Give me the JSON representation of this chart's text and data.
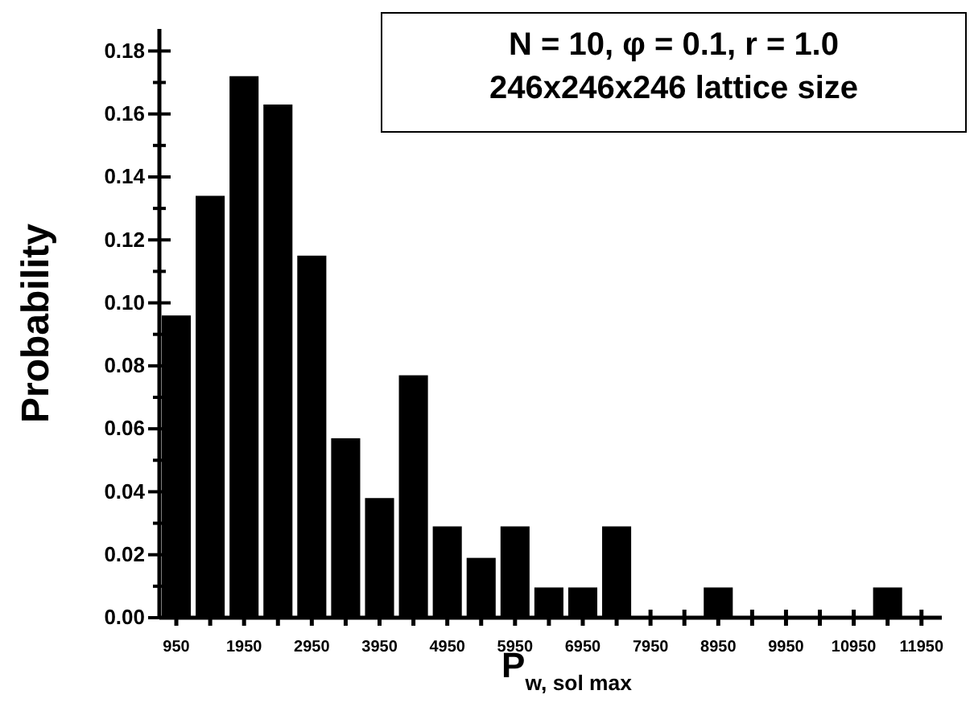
{
  "chart_data": {
    "type": "histogram",
    "xlabel": "P$_{w, sol max}$",
    "ylabel": "Probability",
    "annotations": [
      "N = 10, φ = 0.1, r = 1.0",
      "246x246x246 lattice size"
    ],
    "bins": [
      700,
      1200,
      1700,
      2200,
      2700,
      3200,
      3700,
      4200,
      4700,
      5200,
      5700,
      6200,
      6700,
      7200,
      7700,
      8200,
      8700,
      9200,
      9700,
      10200,
      10700,
      11200,
      11700
    ],
    "values": [
      0.096,
      0.134,
      0.172,
      0.163,
      0.115,
      0.057,
      0.038,
      0.077,
      0.029,
      0.019,
      0.029,
      0.0096,
      0.0096,
      0.029,
      0,
      0,
      0.0096,
      0,
      0,
      0,
      0,
      0.0096
    ],
    "color": "#000000",
    "xlim": [
      700,
      12250
    ],
    "ylim": [
      0,
      0.187
    ],
    "xticks": [
      950,
      {
        "value": 1450,
        "label": null
      },
      1950,
      {
        "value": 2450,
        "label": null
      },
      2950,
      {
        "value": 3450,
        "label": null
      },
      3950,
      {
        "value": 4450,
        "label": null
      },
      4950,
      {
        "value": 5450,
        "label": null
      },
      5950,
      {
        "value": 6450,
        "label": null
      },
      6950,
      {
        "value": 7450,
        "label": null
      },
      7950,
      {
        "value": 8450,
        "label": null
      },
      8950,
      {
        "value": 9450,
        "label": null
      },
      9950,
      {
        "value": 10450,
        "label": null
      },
      10950,
      {
        "value": 11450,
        "label": null
      },
      11950
    ],
    "yticks": [
      {
        "value": 0,
        "label": "0.00"
      },
      {
        "value": 0.01,
        "label": null
      },
      {
        "value": 0.02,
        "label": "0.02"
      },
      {
        "value": 0.03,
        "label": null
      },
      {
        "value": 0.04,
        "label": "0.04"
      },
      {
        "value": 0.05,
        "label": null
      },
      {
        "value": 0.06,
        "label": "0.06"
      },
      {
        "value": 0.07,
        "label": null
      },
      {
        "value": 0.08,
        "label": "0.08"
      },
      {
        "value": 0.09,
        "label": null
      },
      {
        "value": 0.1,
        "label": "0.10"
      },
      {
        "value": 0.11,
        "label": null
      },
      {
        "value": 0.12,
        "label": "0.12"
      },
      {
        "value": 0.13,
        "label": null
      },
      {
        "value": 0.14,
        "label": "0.14"
      },
      {
        "value": 0.15,
        "label": null
      },
      {
        "value": 0.16,
        "label": "0.16"
      },
      {
        "value": 0.17,
        "label": null
      },
      {
        "value": 0.18,
        "label": "0.18"
      }
    ],
    "grid": false
  }
}
